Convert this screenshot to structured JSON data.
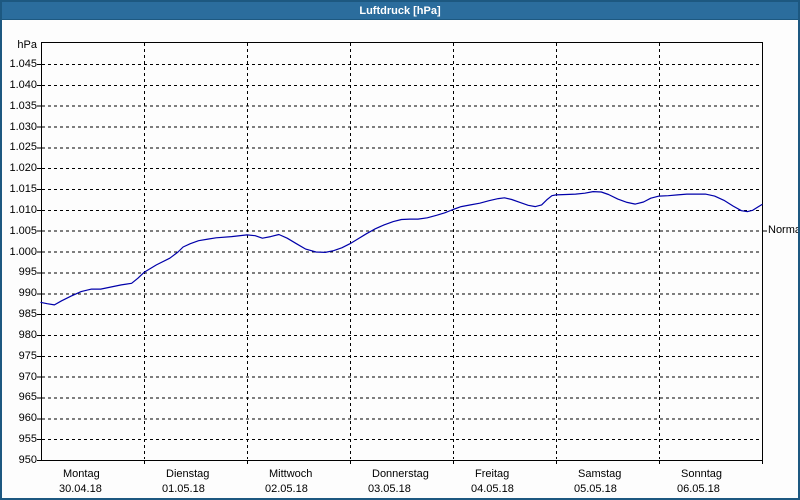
{
  "window": {
    "title": "Luftdruck [hPa]"
  },
  "colors": {
    "titlebar": "#2b6d9d",
    "window_border": "#1d5880",
    "line": "#0000aa",
    "grid": "#000000",
    "background": "#fdfdfd"
  },
  "chart_data": {
    "type": "line",
    "title": "Luftdruck [hPa]",
    "y_unit_label": "hPa",
    "ylabel": "hPa",
    "xlabel": "",
    "grid": "dashed",
    "legend_position": "none",
    "ylim": [
      950,
      1050
    ],
    "y_tick_step": 5,
    "y_ticks": [
      {
        "label": "1.045",
        "value": 1045
      },
      {
        "label": "1.040",
        "value": 1040
      },
      {
        "label": "1.035",
        "value": 1035
      },
      {
        "label": "1.030",
        "value": 1030
      },
      {
        "label": "1.025",
        "value": 1025
      },
      {
        "label": "1.020",
        "value": 1020
      },
      {
        "label": "1.015",
        "value": 1015
      },
      {
        "label": "1.010",
        "value": 1010
      },
      {
        "label": "1.005",
        "value": 1005
      },
      {
        "label": "1.000",
        "value": 1000
      },
      {
        "label": "995",
        "value": 995
      },
      {
        "label": "990",
        "value": 990
      },
      {
        "label": "985",
        "value": 985
      },
      {
        "label": "980",
        "value": 980
      },
      {
        "label": "975",
        "value": 975
      },
      {
        "label": "970",
        "value": 970
      },
      {
        "label": "965",
        "value": 965
      },
      {
        "label": "960",
        "value": 960
      },
      {
        "label": "955",
        "value": 955
      },
      {
        "label": "950",
        "value": 950
      }
    ],
    "x_range_days": 7,
    "x_days": [
      {
        "name": "Montag",
        "date": "30.04.18"
      },
      {
        "name": "Dienstag",
        "date": "01.05.18"
      },
      {
        "name": "Mittwoch",
        "date": "02.05.18"
      },
      {
        "name": "Donnerstag",
        "date": "03.05.18"
      },
      {
        "name": "Freitag",
        "date": "04.05.18"
      },
      {
        "name": "Samstag",
        "date": "05.05.18"
      },
      {
        "name": "Sonntag",
        "date": "06.05.18"
      }
    ],
    "normal_label": "Normal",
    "normal_value": 1005,
    "line_color": "#0000aa",
    "series": [
      {
        "name": "Luftdruck",
        "points": [
          [
            0.0,
            987.8
          ],
          [
            0.06,
            987.5
          ],
          [
            0.13,
            987.2
          ],
          [
            0.2,
            988.2
          ],
          [
            0.29,
            989.3
          ],
          [
            0.39,
            990.4
          ],
          [
            0.49,
            991.0
          ],
          [
            0.58,
            991.0
          ],
          [
            0.68,
            991.5
          ],
          [
            0.78,
            992.0
          ],
          [
            0.88,
            992.4
          ],
          [
            0.94,
            993.6
          ],
          [
            1.0,
            995.0
          ],
          [
            1.12,
            996.8
          ],
          [
            1.25,
            998.4
          ],
          [
            1.33,
            999.9
          ],
          [
            1.38,
            1001.1
          ],
          [
            1.45,
            1001.9
          ],
          [
            1.53,
            1002.6
          ],
          [
            1.62,
            1003.0
          ],
          [
            1.7,
            1003.3
          ],
          [
            1.85,
            1003.6
          ],
          [
            2.0,
            1004.0
          ],
          [
            2.08,
            1003.8
          ],
          [
            2.15,
            1003.2
          ],
          [
            2.23,
            1003.6
          ],
          [
            2.31,
            1004.1
          ],
          [
            2.39,
            1003.2
          ],
          [
            2.48,
            1001.9
          ],
          [
            2.57,
            1000.6
          ],
          [
            2.67,
            999.9
          ],
          [
            2.76,
            999.8
          ],
          [
            2.84,
            1000.2
          ],
          [
            2.92,
            1000.9
          ],
          [
            3.0,
            1001.9
          ],
          [
            3.08,
            1003.1
          ],
          [
            3.16,
            1004.3
          ],
          [
            3.24,
            1005.4
          ],
          [
            3.33,
            1006.4
          ],
          [
            3.42,
            1007.2
          ],
          [
            3.5,
            1007.7
          ],
          [
            3.58,
            1007.8
          ],
          [
            3.66,
            1007.8
          ],
          [
            3.75,
            1008.1
          ],
          [
            3.84,
            1008.7
          ],
          [
            3.92,
            1009.3
          ],
          [
            4.0,
            1010.1
          ],
          [
            4.08,
            1010.8
          ],
          [
            4.17,
            1011.2
          ],
          [
            4.26,
            1011.6
          ],
          [
            4.35,
            1012.2
          ],
          [
            4.44,
            1012.7
          ],
          [
            4.5,
            1012.9
          ],
          [
            4.57,
            1012.5
          ],
          [
            4.65,
            1011.8
          ],
          [
            4.73,
            1011.1
          ],
          [
            4.8,
            1010.8
          ],
          [
            4.86,
            1011.2
          ],
          [
            4.91,
            1012.4
          ],
          [
            4.96,
            1013.4
          ],
          [
            5.0,
            1013.6
          ],
          [
            5.1,
            1013.7
          ],
          [
            5.19,
            1013.8
          ],
          [
            5.28,
            1014.0
          ],
          [
            5.36,
            1014.4
          ],
          [
            5.44,
            1014.3
          ],
          [
            5.51,
            1013.7
          ],
          [
            5.6,
            1012.6
          ],
          [
            5.69,
            1011.8
          ],
          [
            5.77,
            1011.4
          ],
          [
            5.85,
            1011.9
          ],
          [
            5.92,
            1012.8
          ],
          [
            6.0,
            1013.3
          ],
          [
            6.09,
            1013.4
          ],
          [
            6.18,
            1013.6
          ],
          [
            6.27,
            1013.8
          ],
          [
            6.36,
            1013.8
          ],
          [
            6.45,
            1013.8
          ],
          [
            6.54,
            1013.3
          ],
          [
            6.63,
            1012.3
          ],
          [
            6.72,
            1010.9
          ],
          [
            6.8,
            1009.8
          ],
          [
            6.86,
            1009.6
          ],
          [
            6.91,
            1009.9
          ],
          [
            6.96,
            1010.7
          ],
          [
            7.0,
            1011.3
          ]
        ]
      }
    ]
  }
}
